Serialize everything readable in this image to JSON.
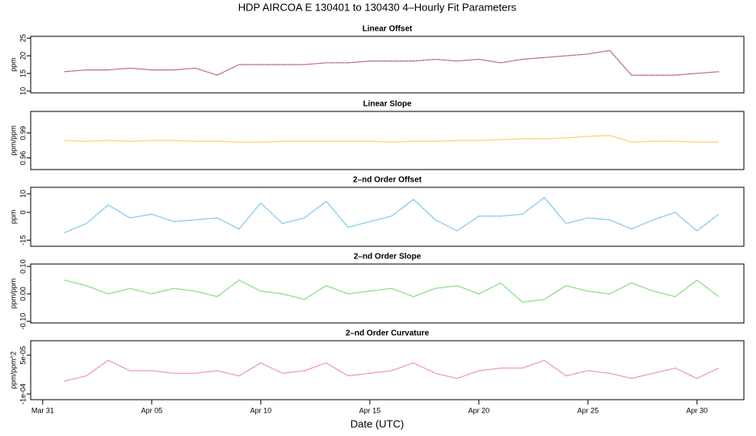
{
  "title": "HDP   AIRCOA E   130401 to 130430   4–Hourly Fit Parameters",
  "xlabel": "Date (UTC)",
  "chart_data": [
    {
      "type": "line",
      "title": "Linear Offset",
      "ylabel": "ppm",
      "color": "#8b0000",
      "x": [
        1,
        2,
        3,
        4,
        5,
        6,
        7,
        8,
        9,
        10,
        11,
        12,
        13,
        14,
        15,
        16,
        17,
        18,
        19,
        20,
        21,
        22,
        23,
        24,
        25,
        26,
        27,
        28,
        29,
        30,
        31
      ],
      "values": [
        15.5,
        16,
        16,
        16.5,
        16,
        16,
        16.5,
        14.5,
        17.5,
        17.5,
        17.5,
        17.5,
        18,
        18,
        18.5,
        18.5,
        18.5,
        19,
        18.5,
        19,
        18,
        19,
        19.5,
        20,
        20.5,
        21.5,
        14.5,
        14.5,
        14.5,
        15,
        15.5
      ],
      "xlim": [
        -0.55,
        32.15
      ],
      "ylim": [
        9.5,
        25.5
      ],
      "yticks": [
        10,
        15,
        20,
        25
      ]
    },
    {
      "type": "line",
      "title": "Linear Slope",
      "ylabel": "ppm/ppm",
      "color": "#ffa500",
      "x": [
        1,
        2,
        3,
        4,
        5,
        6,
        7,
        8,
        9,
        10,
        11,
        12,
        13,
        14,
        15,
        16,
        17,
        18,
        19,
        20,
        21,
        22,
        23,
        24,
        25,
        26,
        27,
        28,
        29,
        30,
        31
      ],
      "values": [
        0.981,
        0.98,
        0.981,
        0.98,
        0.981,
        0.981,
        0.98,
        0.98,
        0.979,
        0.979,
        0.98,
        0.98,
        0.98,
        0.98,
        0.98,
        0.979,
        0.98,
        0.98,
        0.981,
        0.981,
        0.982,
        0.983,
        0.983,
        0.984,
        0.986,
        0.987,
        0.979,
        0.98,
        0.98,
        0.979,
        0.979
      ],
      "xlim": [
        -0.55,
        32.15
      ],
      "ylim": [
        0.946,
        1.016
      ],
      "yticks": [
        0.96,
        0.99
      ]
    },
    {
      "type": "line",
      "title": "2–nd Order Offset",
      "ylabel": "ppm",
      "color": "#1e9fd8",
      "x": [
        1,
        2,
        3,
        4,
        5,
        6,
        7,
        8,
        9,
        10,
        11,
        12,
        13,
        14,
        15,
        16,
        17,
        18,
        19,
        20,
        21,
        22,
        23,
        24,
        25,
        26,
        27,
        28,
        29,
        30,
        31
      ],
      "values": [
        -11,
        -6,
        4,
        -3,
        -1,
        -5,
        -4,
        -3,
        -9,
        5,
        -6,
        -3,
        6,
        -8,
        -5,
        -2,
        7,
        -4,
        -10,
        -2,
        -2,
        -1,
        8,
        -6,
        -3,
        -4,
        -9,
        -4,
        0,
        -10,
        -1
      ],
      "xlim": [
        -0.55,
        32.15
      ],
      "ylim": [
        -18.3,
        13.5
      ],
      "yticks": [
        -15,
        0,
        10
      ]
    },
    {
      "type": "line",
      "title": "2–nd Order Slope",
      "ylabel": "ppm/ppm",
      "color": "#22c422",
      "x": [
        1,
        2,
        3,
        4,
        5,
        6,
        7,
        8,
        9,
        10,
        11,
        12,
        13,
        14,
        15,
        16,
        17,
        18,
        19,
        20,
        21,
        22,
        23,
        24,
        25,
        26,
        27,
        28,
        29,
        30,
        31
      ],
      "values": [
        0.05,
        0.03,
        0,
        0.02,
        0,
        0.02,
        0.01,
        -0.01,
        0.05,
        0.01,
        0,
        -0.02,
        0.03,
        0,
        0.01,
        0.02,
        -0.01,
        0.02,
        0.03,
        0,
        0.04,
        -0.03,
        -0.02,
        0.03,
        0.01,
        0,
        0.04,
        0.01,
        -0.01,
        0.05,
        -0.01
      ],
      "xlim": [
        -0.55,
        32.15
      ],
      "ylim": [
        -0.106,
        0.109
      ],
      "yticks": [
        {
          "value": -0.1,
          "label": "-0.10"
        },
        {
          "value": 0,
          "label": "0.00"
        },
        {
          "value": 0.1,
          "label": "0.10"
        }
      ]
    },
    {
      "type": "line",
      "title": "2–nd Order Curvature",
      "ylabel": "ppm/ppm^2",
      "color": "#e0407f",
      "x": [
        1,
        2,
        3,
        4,
        5,
        6,
        7,
        8,
        9,
        10,
        11,
        12,
        13,
        14,
        15,
        16,
        17,
        18,
        19,
        20,
        21,
        22,
        23,
        24,
        25,
        26,
        27,
        28,
        29,
        30,
        31
      ],
      "values": [
        -5e-05,
        -3e-05,
        3e-05,
        -1e-05,
        -1e-05,
        -2e-05,
        -2e-05,
        -1e-05,
        -3e-05,
        2e-05,
        -2e-05,
        -1e-05,
        2e-05,
        -3e-05,
        -2e-05,
        -1e-05,
        2e-05,
        -2e-05,
        -4e-05,
        -1e-05,
        0,
        0,
        3e-05,
        -3e-05,
        -1e-05,
        -2e-05,
        -4e-05,
        -2e-05,
        0,
        -4e-05,
        0
      ],
      "xlim": [
        -0.55,
        32.15
      ],
      "ylim": [
        -0.000122,
        0.000106
      ],
      "yticks": [
        {
          "value": -0.0001,
          "label": "-1e-04"
        },
        {
          "value": 5e-05,
          "label": "5e-05"
        }
      ],
      "xticks": [
        {
          "value": 0,
          "label": "Mar 31"
        },
        {
          "value": 5,
          "label": "Apr 05"
        },
        {
          "value": 10,
          "label": "Apr 10"
        },
        {
          "value": 15,
          "label": "Apr 15"
        },
        {
          "value": 20,
          "label": "Apr 20"
        },
        {
          "value": 25,
          "label": "Apr 25"
        },
        {
          "value": 30,
          "label": "Apr 30"
        }
      ]
    }
  ]
}
